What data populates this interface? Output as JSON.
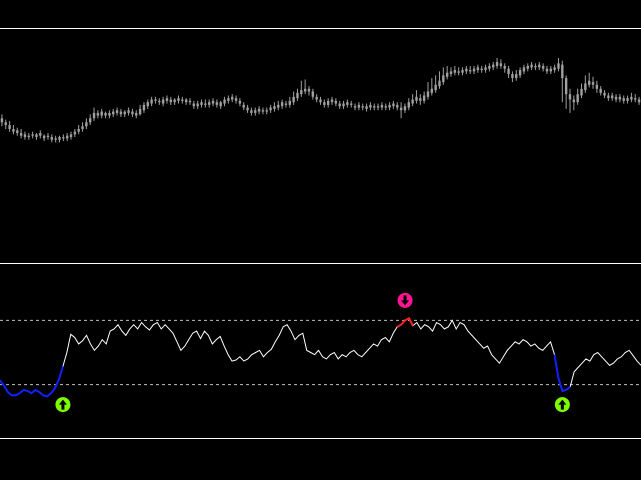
{
  "colors": {
    "background": "#000000",
    "separator": "#ffffff",
    "candle": "#a0a0a0",
    "oscillator_line": "#ffffff",
    "oversold_segment": "#1020ff",
    "overbought_segment": "#ff2020",
    "level_line": "#c0c0c0",
    "buy_arrow": "#7cfc00",
    "sell_arrow": "#ff1493"
  },
  "chart_data": [
    {
      "type": "candlestick",
      "title": "",
      "grid": false,
      "ylim": [
        0,
        100
      ],
      "candles": [
        [
          55,
          58,
          61,
          52
        ],
        [
          53,
          55,
          57,
          50
        ],
        [
          50,
          53,
          56,
          48
        ],
        [
          48,
          50,
          53,
          46
        ],
        [
          47,
          49,
          51,
          45
        ],
        [
          45,
          47,
          50,
          43
        ],
        [
          44,
          46,
          48,
          42
        ],
        [
          44,
          45,
          47,
          42
        ],
        [
          45,
          46,
          48,
          43
        ],
        [
          44,
          46,
          47,
          42
        ],
        [
          45,
          47,
          49,
          43
        ],
        [
          43,
          45,
          46,
          41
        ],
        [
          44,
          45,
          47,
          42
        ],
        [
          42,
          44,
          46,
          40
        ],
        [
          42,
          43,
          45,
          40
        ],
        [
          42,
          44,
          45,
          40
        ],
        [
          43,
          44,
          46,
          41
        ],
        [
          43,
          45,
          47,
          41
        ],
        [
          44,
          46,
          48,
          42
        ],
        [
          46,
          48,
          50,
          44
        ],
        [
          48,
          50,
          53,
          46
        ],
        [
          50,
          52,
          55,
          48
        ],
        [
          52,
          55,
          58,
          50
        ],
        [
          55,
          58,
          61,
          53
        ],
        [
          58,
          62,
          66,
          56
        ],
        [
          62,
          60,
          64,
          58
        ],
        [
          60,
          63,
          65,
          58
        ],
        [
          62,
          60,
          63,
          58
        ],
        [
          60,
          62,
          64,
          58
        ],
        [
          61,
          63,
          65,
          59
        ],
        [
          62,
          64,
          66,
          60
        ],
        [
          63,
          61,
          65,
          59
        ],
        [
          61,
          63,
          64,
          59
        ],
        [
          62,
          64,
          66,
          60
        ],
        [
          63,
          61,
          65,
          59
        ],
        [
          60,
          62,
          64,
          58
        ],
        [
          61,
          65,
          68,
          60
        ],
        [
          64,
          68,
          70,
          62
        ],
        [
          67,
          70,
          72,
          65
        ],
        [
          69,
          72,
          74,
          67
        ],
        [
          72,
          71,
          74,
          69
        ],
        [
          71,
          70,
          73,
          68
        ],
        [
          69,
          72,
          74,
          67
        ],
        [
          71,
          73,
          75,
          69
        ],
        [
          72,
          70,
          74,
          68
        ],
        [
          70,
          72,
          73,
          68
        ],
        [
          71,
          73,
          75,
          69
        ],
        [
          72,
          71,
          74,
          69
        ],
        [
          70,
          72,
          73,
          68
        ],
        [
          71,
          70,
          73,
          68
        ],
        [
          69,
          67,
          71,
          65
        ],
        [
          67,
          69,
          71,
          65
        ],
        [
          68,
          70,
          72,
          66
        ],
        [
          69,
          68,
          72,
          66
        ],
        [
          68,
          70,
          72,
          66
        ],
        [
          69,
          71,
          73,
          67
        ],
        [
          70,
          68,
          72,
          66
        ],
        [
          67,
          70,
          71,
          65
        ],
        [
          69,
          72,
          74,
          67
        ],
        [
          71,
          73,
          75,
          69
        ],
        [
          72,
          74,
          76,
          70
        ],
        [
          73,
          71,
          75,
          69
        ],
        [
          71,
          69,
          73,
          67
        ],
        [
          68,
          66,
          70,
          64
        ],
        [
          66,
          64,
          68,
          62
        ],
        [
          64,
          62,
          66,
          60
        ],
        [
          62,
          64,
          66,
          60
        ],
        [
          63,
          65,
          67,
          61
        ],
        [
          64,
          63,
          66,
          61
        ],
        [
          63,
          64,
          66,
          61
        ],
        [
          64,
          66,
          68,
          62
        ],
        [
          65,
          67,
          70,
          63
        ],
        [
          66,
          68,
          71,
          64
        ],
        [
          67,
          70,
          72,
          65
        ],
        [
          69,
          68,
          71,
          66
        ],
        [
          68,
          71,
          74,
          66
        ],
        [
          70,
          74,
          78,
          68
        ],
        [
          73,
          77,
          80,
          71
        ],
        [
          76,
          79,
          86,
          74
        ],
        [
          78,
          80,
          87,
          76
        ],
        [
          80,
          78,
          82,
          75
        ],
        [
          78,
          74,
          80,
          72
        ],
        [
          74,
          72,
          76,
          70
        ],
        [
          72,
          70,
          74,
          68
        ],
        [
          70,
          68,
          72,
          66
        ],
        [
          68,
          71,
          73,
          66
        ],
        [
          70,
          72,
          74,
          68
        ],
        [
          71,
          69,
          73,
          67
        ],
        [
          69,
          67,
          71,
          65
        ],
        [
          67,
          69,
          71,
          65
        ],
        [
          68,
          70,
          72,
          66
        ],
        [
          69,
          68,
          71,
          66
        ],
        [
          67,
          66,
          69,
          64
        ],
        [
          66,
          68,
          70,
          64
        ],
        [
          67,
          66,
          69,
          64
        ],
        [
          65,
          67,
          69,
          63
        ],
        [
          66,
          68,
          70,
          64
        ],
        [
          67,
          66,
          69,
          64
        ],
        [
          66,
          67,
          69,
          64
        ],
        [
          66,
          68,
          70,
          64
        ],
        [
          67,
          66,
          69,
          64
        ],
        [
          66,
          68,
          70,
          64
        ],
        [
          67,
          69,
          71,
          65
        ],
        [
          68,
          66,
          70,
          64
        ],
        [
          66,
          64,
          70,
          58
        ],
        [
          64,
          67,
          69,
          62
        ],
        [
          66,
          70,
          73,
          64
        ],
        [
          69,
          72,
          76,
          67
        ],
        [
          71,
          74,
          79,
          69
        ],
        [
          73,
          71,
          76,
          68
        ],
        [
          71,
          75,
          78,
          69
        ],
        [
          74,
          78,
          85,
          72
        ],
        [
          77,
          80,
          88,
          75
        ],
        [
          79,
          83,
          90,
          77
        ],
        [
          82,
          86,
          93,
          80
        ],
        [
          85,
          90,
          96,
          83
        ],
        [
          89,
          92,
          97,
          87
        ],
        [
          91,
          93,
          96,
          89
        ],
        [
          92,
          94,
          97,
          90
        ],
        [
          93,
          92,
          96,
          90
        ],
        [
          92,
          94,
          96,
          90
        ],
        [
          93,
          95,
          97,
          91
        ],
        [
          94,
          93,
          97,
          91
        ],
        [
          93,
          95,
          97,
          91
        ],
        [
          94,
          96,
          98,
          92
        ],
        [
          95,
          94,
          97,
          92
        ],
        [
          94,
          96,
          98,
          92
        ],
        [
          95,
          97,
          99,
          93
        ],
        [
          96,
          98,
          100,
          94
        ],
        [
          97,
          100,
          103,
          95
        ],
        [
          99,
          97,
          102,
          95
        ],
        [
          97,
          95,
          99,
          92
        ],
        [
          95,
          91,
          97,
          88
        ],
        [
          91,
          88,
          93,
          85
        ],
        [
          88,
          91,
          94,
          86
        ],
        [
          90,
          94,
          96,
          88
        ],
        [
          93,
          96,
          98,
          91
        ],
        [
          95,
          97,
          99,
          93
        ],
        [
          96,
          98,
          100,
          94
        ],
        [
          97,
          96,
          99,
          94
        ],
        [
          96,
          98,
          100,
          94
        ],
        [
          97,
          95,
          99,
          93
        ],
        [
          95,
          93,
          97,
          91
        ],
        [
          93,
          95,
          97,
          91
        ],
        [
          94,
          96,
          98,
          92
        ],
        [
          95,
          99,
          103,
          93
        ],
        [
          98,
          88,
          101,
          70
        ],
        [
          88,
          76,
          90,
          65
        ],
        [
          76,
          72,
          80,
          62
        ],
        [
          72,
          70,
          75,
          64
        ],
        [
          70,
          76,
          80,
          68
        ],
        [
          75,
          80,
          84,
          73
        ],
        [
          79,
          84,
          90,
          77
        ],
        [
          83,
          86,
          92,
          81
        ],
        [
          85,
          83,
          89,
          80
        ],
        [
          83,
          80,
          86,
          77
        ],
        [
          80,
          77,
          82,
          75
        ],
        [
          77,
          75,
          79,
          73
        ],
        [
          75,
          73,
          77,
          71
        ],
        [
          73,
          75,
          77,
          71
        ],
        [
          74,
          72,
          76,
          70
        ],
        [
          72,
          74,
          76,
          70
        ],
        [
          73,
          71,
          75,
          69
        ],
        [
          71,
          73,
          75,
          69
        ],
        [
          72,
          74,
          77,
          70
        ],
        [
          73,
          72,
          76,
          70
        ],
        [
          72,
          70,
          74,
          68
        ]
      ]
    },
    {
      "type": "line",
      "title": "",
      "grid": false,
      "ylim": [
        0,
        100
      ],
      "levels": [
        80,
        20
      ],
      "values": [
        24,
        19,
        13,
        10,
        10,
        12,
        15,
        14,
        12,
        15,
        13,
        10,
        9,
        12,
        17,
        25,
        37,
        50,
        67,
        64,
        58,
        61,
        66,
        58,
        52,
        56,
        62,
        58,
        70,
        72,
        76,
        70,
        66,
        72,
        76,
        72,
        78,
        74,
        71,
        76,
        78,
        72,
        76,
        72,
        68,
        60,
        52,
        56,
        62,
        68,
        70,
        63,
        70,
        66,
        58,
        62,
        65,
        56,
        48,
        42,
        43,
        46,
        42,
        44,
        48,
        50,
        52,
        46,
        50,
        53,
        60,
        66,
        74,
        76,
        70,
        62,
        66,
        68,
        52,
        50,
        48,
        52,
        46,
        44,
        48,
        50,
        44,
        48,
        46,
        50,
        52,
        48,
        46,
        50,
        54,
        58,
        56,
        62,
        64,
        60,
        68,
        74,
        76,
        80,
        82,
        75,
        78,
        72,
        76,
        74,
        70,
        78,
        76,
        72,
        74,
        80,
        72,
        78,
        76,
        70,
        66,
        62,
        58,
        54,
        56,
        48,
        44,
        40,
        46,
        52,
        56,
        60,
        58,
        62,
        60,
        56,
        58,
        54,
        52,
        56,
        60,
        48,
        26,
        14,
        15,
        18,
        32,
        36,
        40,
        44,
        42,
        48,
        50,
        46,
        42,
        38,
        40,
        44,
        46,
        50,
        52,
        47,
        42,
        38
      ],
      "oversold_segments": [
        [
          0,
          16
        ],
        [
          141,
          145
        ]
      ],
      "overbought_segments": [
        [
          101,
          105
        ]
      ],
      "signals": [
        {
          "type": "buy",
          "index": 16
        },
        {
          "type": "sell",
          "index": 103
        },
        {
          "type": "buy",
          "index": 143
        }
      ]
    }
  ]
}
